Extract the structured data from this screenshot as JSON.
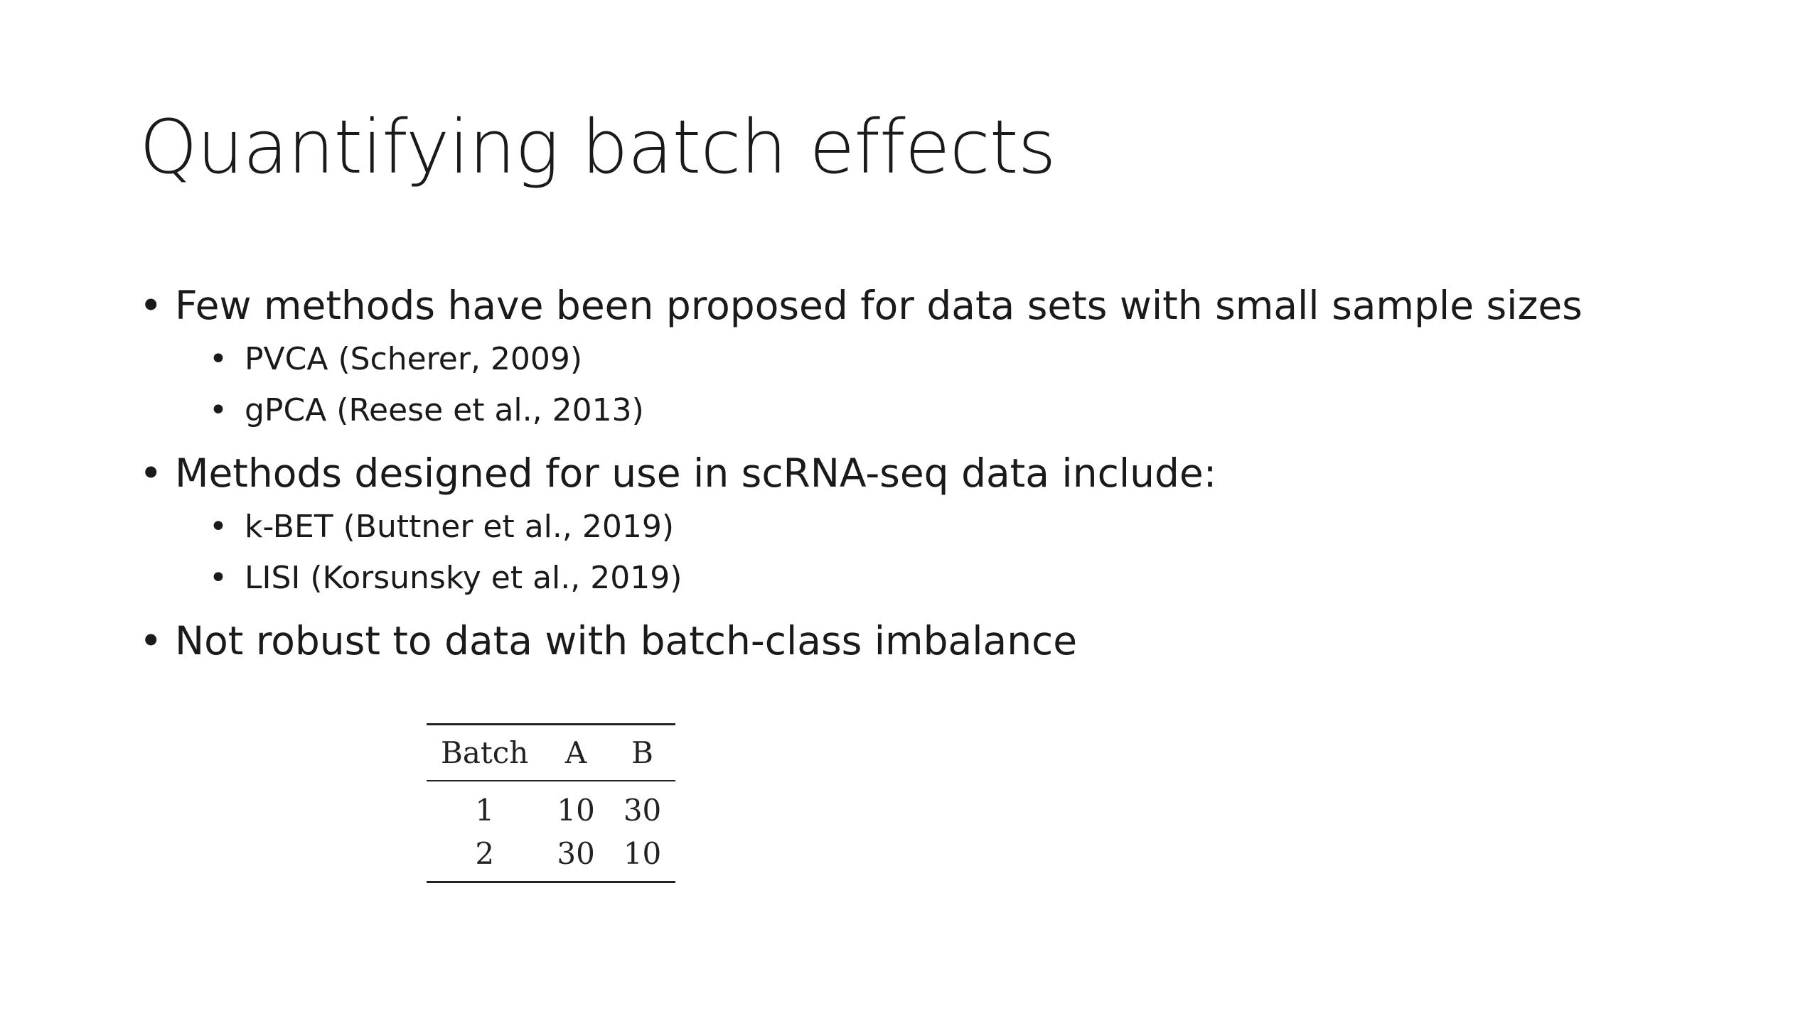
{
  "slide": {
    "title": "Quantifying batch effects",
    "bullet_glyph": "•",
    "bullets": [
      {
        "text": "Few methods have been proposed for data sets with small sample sizes",
        "sub": [
          "PVCA (Scherer, 2009)",
          "gPCA (Reese et al., 2013)"
        ]
      },
      {
        "text": "Methods designed for use in scRNA-seq data include:",
        "sub": [
          "k-BET (Buttner et al., 2019)",
          "LISI (Korsunsky et al., 2019)"
        ]
      },
      {
        "text": "Not robust to data with batch-class imbalance",
        "sub": []
      }
    ],
    "table": {
      "headers": [
        "Batch",
        "A",
        "B"
      ],
      "rows": [
        [
          "1",
          "10",
          "30"
        ],
        [
          "2",
          "30",
          "10"
        ]
      ]
    }
  }
}
